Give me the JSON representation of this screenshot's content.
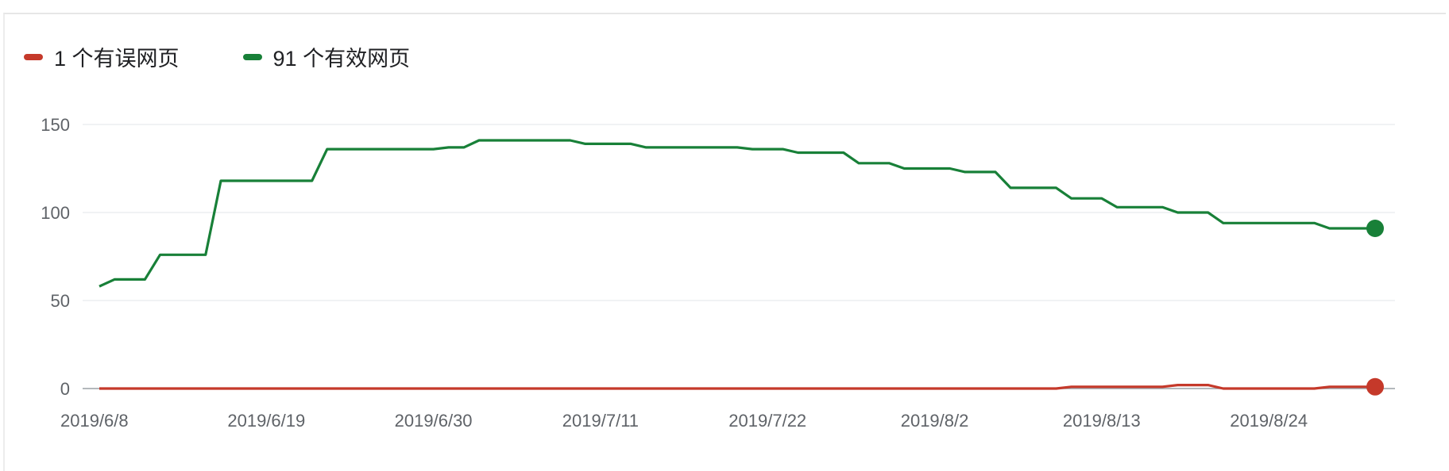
{
  "legend": {
    "items": [
      {
        "label": "1 个有误网页",
        "color": "#c5392a"
      },
      {
        "label": "91 个有效网页",
        "color": "#188038"
      }
    ]
  },
  "chart_data": {
    "type": "line",
    "ylim": [
      0,
      150
    ],
    "yticks": [
      0,
      50,
      100,
      150
    ],
    "x_start": "2019/6/8",
    "x_end": "2019/8/31",
    "xticks": [
      "2019/6/8",
      "2019/6/19",
      "2019/6/30",
      "2019/7/11",
      "2019/7/22",
      "2019/8/2",
      "2019/8/13",
      "2019/8/24"
    ],
    "grid": true,
    "legend_position": "top-left",
    "series": [
      {
        "name": "91 个有效网页",
        "color": "#188038",
        "points": [
          [
            "2019/6/8",
            58
          ],
          [
            "2019/6/9",
            62
          ],
          [
            "2019/6/11",
            62
          ],
          [
            "2019/6/12",
            76
          ],
          [
            "2019/6/15",
            76
          ],
          [
            "2019/6/16",
            118
          ],
          [
            "2019/6/22",
            118
          ],
          [
            "2019/6/23",
            136
          ],
          [
            "2019/6/30",
            136
          ],
          [
            "2019/7/1",
            137
          ],
          [
            "2019/7/2",
            137
          ],
          [
            "2019/7/3",
            141
          ],
          [
            "2019/7/9",
            141
          ],
          [
            "2019/7/10",
            139
          ],
          [
            "2019/7/13",
            139
          ],
          [
            "2019/7/14",
            137
          ],
          [
            "2019/7/20",
            137
          ],
          [
            "2019/7/21",
            136
          ],
          [
            "2019/7/23",
            136
          ],
          [
            "2019/7/24",
            134
          ],
          [
            "2019/7/27",
            134
          ],
          [
            "2019/7/28",
            128
          ],
          [
            "2019/7/30",
            128
          ],
          [
            "2019/7/31",
            125
          ],
          [
            "2019/8/3",
            125
          ],
          [
            "2019/8/4",
            123
          ],
          [
            "2019/8/6",
            123
          ],
          [
            "2019/8/7",
            114
          ],
          [
            "2019/8/10",
            114
          ],
          [
            "2019/8/11",
            108
          ],
          [
            "2019/8/13",
            108
          ],
          [
            "2019/8/14",
            103
          ],
          [
            "2019/8/17",
            103
          ],
          [
            "2019/8/18",
            100
          ],
          [
            "2019/8/20",
            100
          ],
          [
            "2019/8/21",
            94
          ],
          [
            "2019/8/27",
            94
          ],
          [
            "2019/8/28",
            91
          ],
          [
            "2019/8/31",
            91
          ]
        ]
      },
      {
        "name": "1 个有误网页",
        "color": "#c5392a",
        "points": [
          [
            "2019/6/8",
            0
          ],
          [
            "2019/8/10",
            0
          ],
          [
            "2019/8/11",
            1
          ],
          [
            "2019/8/17",
            1
          ],
          [
            "2019/8/18",
            2
          ],
          [
            "2019/8/20",
            2
          ],
          [
            "2019/8/21",
            0
          ],
          [
            "2019/8/27",
            0
          ],
          [
            "2019/8/28",
            1
          ],
          [
            "2019/8/31",
            1
          ]
        ]
      }
    ]
  }
}
